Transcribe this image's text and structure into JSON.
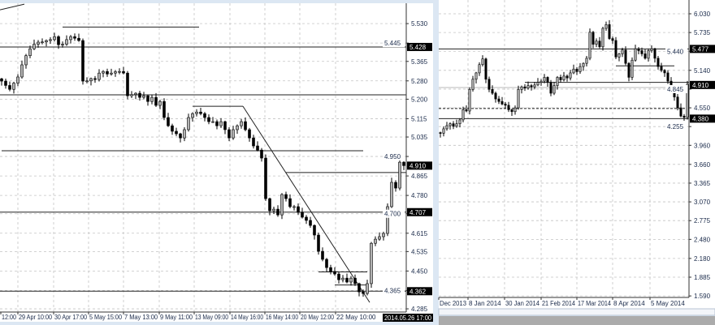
{
  "chart_data": [
    {
      "type": "candlestick",
      "ylim": [
        4.271,
        5.633
      ],
      "grid": true,
      "y_ticks": [
        "5.530",
        "5.445",
        "5.365",
        "5.280",
        "5.200",
        "5.115",
        "5.035",
        "4.950",
        "4.865",
        "4.780",
        "4.700",
        "4.615",
        "4.535",
        "4.450",
        "4.365",
        "4.285"
      ],
      "price_badges": [
        "5.428",
        "4.910",
        "4.707",
        "4.362"
      ],
      "current_price": "4.910",
      "x_ticks": [
        {
          "label": "12:00",
          "at": -0.2
        },
        {
          "label": "29 Apr 10:00",
          "at": 4
        },
        {
          "label": "30 Apr 17:00",
          "at": 12.8
        },
        {
          "label": "5 May 15:00",
          "at": 21.4
        },
        {
          "label": "7 May 13:00",
          "at": 30
        },
        {
          "label": "9 May 11:00",
          "at": 38.8
        },
        {
          "label": "13 May 09:00",
          "at": 47.4
        },
        {
          "label": "14 May 16:00",
          "at": 56.2
        },
        {
          "label": "16 May 14:00",
          "at": 64.8
        },
        {
          "label": "20 May 12:00",
          "at": 73.4
        },
        {
          "label": "22 May 10:00",
          "at": 82.2
        }
      ],
      "cursor_time_label": "2014.05.26 17:00",
      "closes": [
        5.279,
        5.26,
        5.243,
        5.27,
        5.297,
        5.35,
        5.39,
        5.42,
        5.44,
        5.449,
        5.45,
        5.456,
        5.46,
        5.473,
        5.438,
        5.44,
        5.46,
        5.473,
        5.466,
        5.456,
        5.279,
        5.28,
        5.29,
        5.286,
        5.314,
        5.321,
        5.31,
        5.314,
        5.32,
        5.321,
        5.314,
        5.215,
        5.22,
        5.226,
        5.208,
        5.215,
        5.19,
        5.208,
        5.173,
        5.19,
        5.12,
        5.084,
        5.06,
        5.049,
        5.031,
        5.067,
        5.12,
        5.137,
        5.144,
        5.137,
        5.12,
        5.102,
        5.102,
        5.084,
        5.102,
        5.067,
        5.031,
        5.067,
        5.084,
        5.102,
        5.067,
        5.031,
        4.996,
        4.978,
        4.943,
        4.766,
        4.713,
        4.72,
        4.695,
        4.784,
        4.766,
        4.731,
        4.731,
        4.706,
        4.685,
        4.671,
        4.649,
        4.607,
        4.536,
        4.501,
        4.465,
        4.448,
        4.437,
        4.412,
        4.419,
        4.402,
        4.419,
        4.395,
        4.359,
        4.352,
        4.395,
        4.571,
        4.589,
        4.6,
        4.614,
        4.731,
        4.837,
        4.812,
        4.925,
        4.91
      ],
      "levels": [
        {
          "price": 5.428
        },
        {
          "price": 5.219
        },
        {
          "price": 4.707
        },
        {
          "price": 4.362
        },
        {
          "price": 4.975,
          "from": 0,
          "to": 89
        },
        {
          "price": 4.88,
          "from": 70,
          "to": 100
        },
        {
          "price": 5.515,
          "from": 15,
          "to": 48.6
        },
        {
          "price": 5.169,
          "from": 47,
          "to": 59.4
        },
        {
          "price": 4.446,
          "from": 78,
          "to": 90
        },
        {
          "price": 4.389,
          "from": 82,
          "to": 90
        }
      ],
      "trendlines": [
        {
          "from": [
            59.4,
            5.169
          ],
          "to": [
            90.6,
            4.313
          ]
        },
        {
          "from": [
            -0.4,
            5.59
          ],
          "to": [
            5.6,
            5.615
          ]
        }
      ]
    },
    {
      "type": "candlestick",
      "ylim": [
        1.566,
        6.247
      ],
      "grid": true,
      "y_ticks": [
        "6.030",
        "5.735",
        "5.440",
        "5.140",
        "4.845",
        "4.550",
        "4.255",
        "3.960",
        "3.660",
        "3.365",
        "3.070",
        "2.775",
        "2.480",
        "2.180",
        "1.885",
        "1.590"
      ],
      "price_badges": [
        "5.477",
        "4.910",
        "4.380"
      ],
      "current_price": "4.910",
      "x_ticks": [
        {
          "label": "Dec 2013",
          "at": -0.5
        },
        {
          "label": "8 Jan 2014",
          "at": 8.5
        },
        {
          "label": "30 Jan 2014",
          "at": 19.75
        },
        {
          "label": "21 Feb 2014",
          "at": 31
        },
        {
          "label": "17 Mar 2014",
          "at": 42
        },
        {
          "label": "8 Apr 2014",
          "at": 53
        },
        {
          "label": "5 May 2014",
          "at": 64.5
        }
      ],
      "closes": [
        4.15,
        4.22,
        4.27,
        4.3,
        4.26,
        4.3,
        4.36,
        4.52,
        4.5,
        4.84,
        5.0,
        5.1,
        5.23,
        5.32,
        5.0,
        4.84,
        4.78,
        4.69,
        4.65,
        4.61,
        4.59,
        4.52,
        4.49,
        4.55,
        4.84,
        4.88,
        4.86,
        4.9,
        4.88,
        4.91,
        4.95,
        4.97,
        5.03,
        4.95,
        4.78,
        4.9,
        5.03,
        4.99,
        5.05,
        5.02,
        5.1,
        5.16,
        5.12,
        5.2,
        5.25,
        5.33,
        5.74,
        5.55,
        5.6,
        5.51,
        5.8,
        5.86,
        5.64,
        5.61,
        5.35,
        5.4,
        5.46,
        5.25,
        5.03,
        5.3,
        5.48,
        5.45,
        5.4,
        5.33,
        5.45,
        5.48,
        5.33,
        5.2,
        5.14,
        5.1,
        4.97,
        4.85,
        4.72,
        4.55,
        4.42,
        4.4,
        4.92
      ],
      "levels": [
        {
          "price": 5.477
        },
        {
          "price": 4.87,
          "style": "light"
        },
        {
          "price": 4.54,
          "style": "dashed"
        },
        {
          "price": 4.38
        },
        {
          "price": 4.95,
          "from": 26,
          "to": 77
        },
        {
          "price": 5.21,
          "from": 54,
          "to": 72
        }
      ],
      "trendlines": []
    }
  ],
  "colors": {
    "up_body": "#b4b4b4",
    "down_body": "#000000",
    "grid": "#c4c4c4",
    "badge": "#000000",
    "frame": "#dce7f3",
    "workspace": "#ababab"
  }
}
